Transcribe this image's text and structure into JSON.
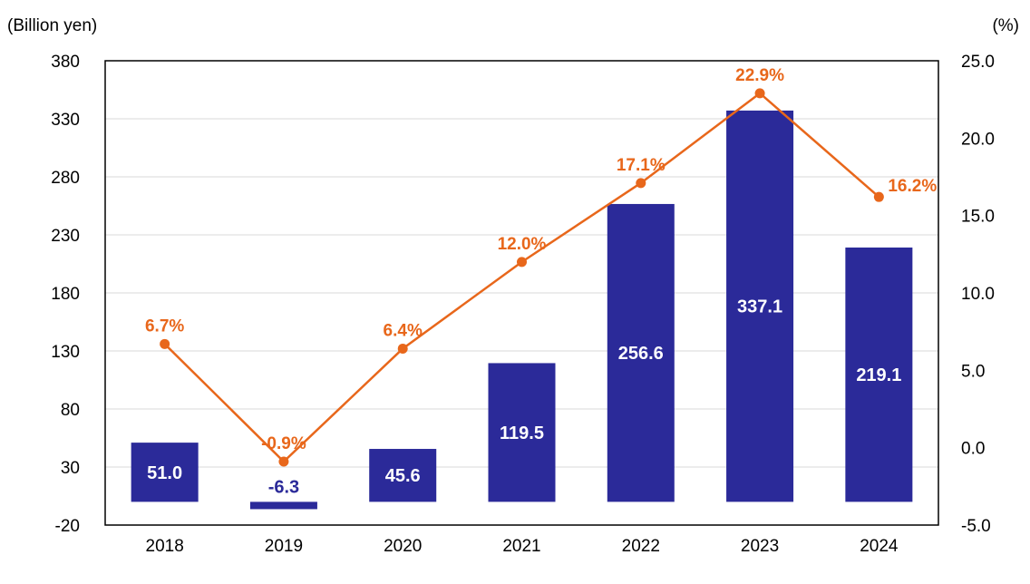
{
  "chart_data": {
    "type": "bar",
    "left_unit": "(Billion yen)",
    "right_unit": "(%)",
    "categories": [
      "2018",
      "2019",
      "2020",
      "2021",
      "2022",
      "2023",
      "2024"
    ],
    "series": [
      {
        "type": "bar",
        "axis": "left",
        "values": [
          51.0,
          -6.3,
          45.6,
          119.5,
          256.6,
          337.1,
          219.1
        ],
        "labels": [
          "51.0",
          "-6.3",
          "45.6",
          "119.5",
          "256.6",
          "337.1",
          "219.1"
        ]
      },
      {
        "type": "line",
        "axis": "right",
        "values": [
          6.7,
          -0.9,
          6.4,
          12.0,
          17.1,
          22.9,
          16.2
        ],
        "labels": [
          "6.7%",
          "-0.9%",
          "6.4%",
          "12.0%",
          "17.1%",
          "22.9%",
          "16.2%"
        ]
      }
    ],
    "left_axis": {
      "range": [
        -20,
        380
      ],
      "ticks": [
        "380",
        "330",
        "280",
        "230",
        "180",
        "130",
        "80",
        "30",
        "-20"
      ]
    },
    "right_axis": {
      "range": [
        -5,
        25
      ],
      "ticks": [
        "25.0",
        "20.0",
        "15.0",
        "10.0",
        "5.0",
        "0.0",
        "-5.0"
      ]
    },
    "grid": true,
    "legend": "none",
    "colors": {
      "bar": "#2B2A99",
      "line": "#E8671B",
      "bar_label_inside": "#FFFFFF",
      "grid": "#D9D9D9",
      "axis": "#000000"
    }
  }
}
